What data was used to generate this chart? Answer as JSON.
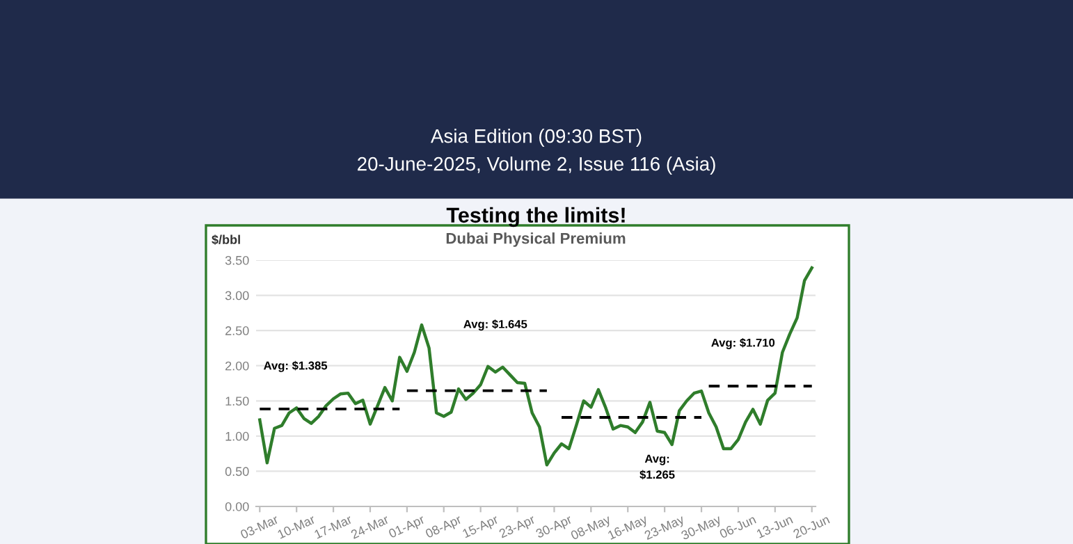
{
  "chart_data": {
    "type": "line",
    "title": "Testing the limits!",
    "subtitle": "Dubai Physical Premium",
    "ylabel": "$/bbl",
    "categories": [
      "03-Mar",
      null,
      null,
      null,
      null,
      "10-Mar",
      null,
      null,
      null,
      null,
      "17-Mar",
      null,
      null,
      null,
      null,
      "24-Mar",
      null,
      null,
      null,
      null,
      "01-Apr",
      null,
      null,
      null,
      null,
      "08-Apr",
      null,
      null,
      null,
      null,
      "15-Apr",
      null,
      null,
      null,
      null,
      "23-Apr",
      null,
      null,
      null,
      null,
      "30-Apr",
      null,
      null,
      null,
      null,
      "08-May",
      null,
      null,
      null,
      null,
      "16-May",
      null,
      null,
      null,
      null,
      "23-May",
      null,
      null,
      null,
      null,
      "30-May",
      null,
      null,
      null,
      null,
      "06-Jun",
      null,
      null,
      null,
      null,
      "13-Jun",
      null,
      null,
      null,
      null,
      "20-Jun"
    ],
    "series": [
      {
        "color": "#2f7d2b",
        "line_style": "solid",
        "values": [
          1.23,
          0.62,
          1.11,
          1.15,
          1.33,
          1.4,
          1.25,
          1.18,
          1.28,
          1.43,
          1.53,
          1.6,
          1.61,
          1.46,
          1.51,
          1.17,
          1.43,
          1.69,
          1.5,
          2.12,
          1.92,
          2.19,
          2.58,
          2.25,
          1.33,
          1.28,
          1.34,
          1.67,
          1.52,
          1.61,
          1.73,
          1.99,
          1.91,
          1.98,
          1.87,
          1.76,
          1.75,
          1.33,
          1.13,
          0.59,
          0.76,
          0.89,
          0.82,
          1.15,
          1.5,
          1.41,
          1.66,
          1.4,
          1.1,
          1.15,
          1.13,
          1.05,
          1.2,
          1.48,
          1.07,
          1.05,
          0.88,
          1.36,
          1.5,
          1.61,
          1.64,
          1.33,
          1.13,
          0.82,
          0.82,
          0.95,
          1.2,
          1.38,
          1.17,
          1.51,
          1.61,
          2.19,
          2.45,
          2.68,
          3.21,
          3.39
        ]
      },
      {
        "color": "#000000",
        "line_style": "dashed",
        "values": [
          1.385,
          1.385,
          1.385,
          1.385,
          1.385,
          1.385,
          1.385,
          1.385,
          1.385,
          1.385,
          1.385,
          1.385,
          1.385,
          1.385,
          1.385,
          1.385,
          1.385,
          1.385,
          1.385,
          1.385,
          null,
          null,
          null,
          null,
          null,
          null,
          null,
          null,
          null,
          null,
          null,
          null,
          null,
          null,
          null,
          null,
          null,
          null,
          null,
          null,
          null,
          null,
          null,
          null,
          null,
          null,
          null,
          null,
          null,
          null,
          null,
          null,
          null,
          null,
          null,
          null,
          null,
          null,
          null,
          null,
          null,
          null,
          null,
          null,
          null,
          null,
          null,
          null,
          null,
          null,
          null,
          null,
          null,
          null,
          null,
          null
        ]
      },
      {
        "color": "#000000",
        "line_style": "dashed",
        "values": [
          null,
          null,
          null,
          null,
          null,
          null,
          null,
          null,
          null,
          null,
          null,
          null,
          null,
          null,
          null,
          null,
          null,
          null,
          null,
          null,
          1.645,
          1.645,
          1.645,
          1.645,
          1.645,
          1.645,
          1.645,
          1.645,
          1.645,
          1.645,
          1.645,
          1.645,
          1.645,
          1.645,
          1.645,
          1.645,
          1.645,
          1.645,
          1.645,
          1.645,
          null,
          null,
          null,
          null,
          null,
          null,
          null,
          null,
          null,
          null,
          null,
          null,
          null,
          null,
          null,
          null,
          null,
          null,
          null,
          null,
          null,
          null,
          null,
          null,
          null,
          null,
          null,
          null,
          null,
          null,
          null,
          null,
          null,
          null,
          null,
          null
        ]
      },
      {
        "color": "#000000",
        "line_style": "dashed",
        "values": [
          null,
          null,
          null,
          null,
          null,
          null,
          null,
          null,
          null,
          null,
          null,
          null,
          null,
          null,
          null,
          null,
          null,
          null,
          null,
          null,
          null,
          null,
          null,
          null,
          null,
          null,
          null,
          null,
          null,
          null,
          null,
          null,
          null,
          null,
          null,
          null,
          null,
          null,
          null,
          null,
          null,
          1.265,
          1.265,
          1.265,
          1.265,
          1.265,
          1.265,
          1.265,
          1.265,
          1.265,
          1.265,
          1.265,
          1.265,
          1.265,
          1.265,
          1.265,
          1.265,
          1.265,
          1.265,
          1.265,
          1.265,
          null,
          null,
          null,
          null,
          null,
          null,
          null,
          null,
          null,
          null,
          null,
          null,
          null,
          null,
          null
        ]
      },
      {
        "color": "#000000",
        "line_style": "dashed",
        "values": [
          null,
          null,
          null,
          null,
          null,
          null,
          null,
          null,
          null,
          null,
          null,
          null,
          null,
          null,
          null,
          null,
          null,
          null,
          null,
          null,
          null,
          null,
          null,
          null,
          null,
          null,
          null,
          null,
          null,
          null,
          null,
          null,
          null,
          null,
          null,
          null,
          null,
          null,
          null,
          null,
          null,
          null,
          null,
          null,
          null,
          null,
          null,
          null,
          null,
          null,
          null,
          null,
          null,
          null,
          null,
          null,
          null,
          null,
          null,
          null,
          null,
          1.71,
          1.71,
          1.71,
          1.71,
          1.71,
          1.71,
          1.71,
          1.71,
          1.71,
          1.71,
          1.71,
          1.71,
          1.71,
          1.71,
          1.71
        ]
      }
    ],
    "ylim": [
      0,
      3.5
    ],
    "yticks": [
      {
        "value": 0,
        "label": "0.00"
      },
      {
        "value": 0.5,
        "label": "0.50"
      },
      {
        "value": 1,
        "label": "1.00"
      },
      {
        "value": 1.5,
        "label": "1.50"
      },
      {
        "value": 2,
        "label": "2.00"
      },
      {
        "value": 2.5,
        "label": "2.50"
      },
      {
        "value": 3,
        "label": "3.00"
      },
      {
        "value": 3.5,
        "label": "3.50"
      }
    ],
    "grid": "y",
    "marker": "none",
    "annotations": [
      "Asia Edition (09:30 BST)",
      "20-June-2025, Volume 2, Issue 116 (Asia)",
      "Avg: $1.385",
      "Avg: $1.645",
      "Avg:\n$1.265",
      "Avg: $1.710"
    ]
  }
}
